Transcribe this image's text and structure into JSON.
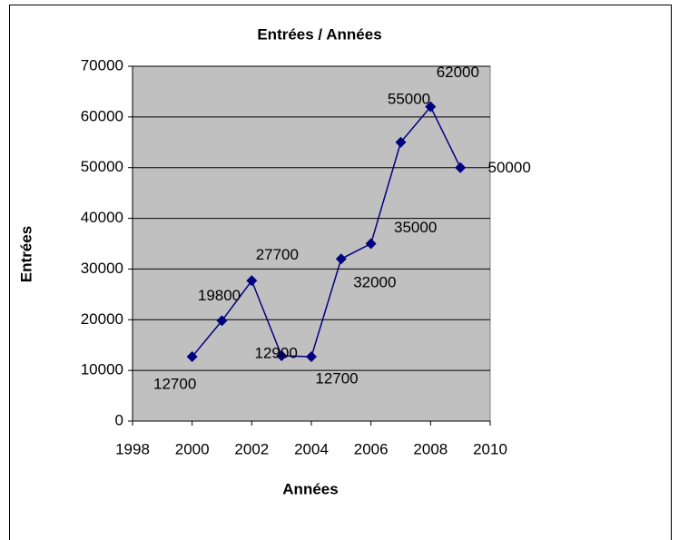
{
  "chart_data": {
    "type": "line",
    "title": "Entrées / Années",
    "x_label": "Années",
    "y_label": "Entrées",
    "x": [
      2000,
      2001,
      2002,
      2003,
      2004,
      2005,
      2006,
      2007,
      2008,
      2009
    ],
    "series": [
      {
        "name": "Entrées",
        "color": "#000080",
        "values": [
          12700,
          19800,
          27700,
          12900,
          12700,
          32000,
          35000,
          55000,
          62000,
          50000
        ]
      }
    ],
    "xlim": [
      1998,
      2010
    ],
    "xticks": [
      1998,
      2000,
      2002,
      2004,
      2006,
      2008,
      2010
    ],
    "ylim": [
      0,
      70000
    ],
    "yticks": [
      0,
      10000,
      20000,
      30000,
      40000,
      50000,
      60000,
      70000
    ],
    "grid": true,
    "plot_background": "#c0c0c0"
  }
}
